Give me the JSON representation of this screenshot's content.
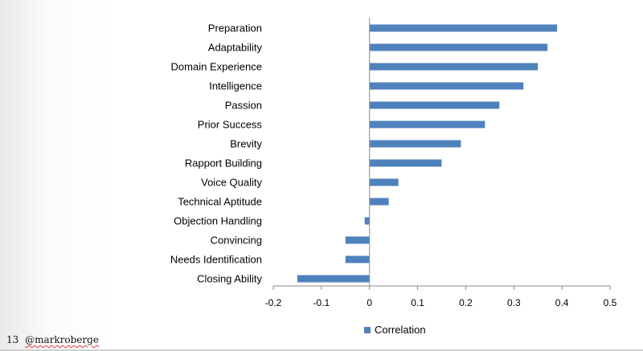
{
  "chart_data": {
    "type": "bar",
    "orientation": "horizontal",
    "categories": [
      "Preparation",
      "Adaptability",
      "Domain Experience",
      "Intelligence",
      "Passion",
      "Prior Success",
      "Brevity",
      "Rapport Building",
      "Voice Quality",
      "Technical Aptitude",
      "Objection Handling",
      "Convincing",
      "Needs Identification",
      "Closing Ability"
    ],
    "series": [
      {
        "name": "Correlation",
        "values": [
          0.39,
          0.37,
          0.35,
          0.32,
          0.27,
          0.24,
          0.19,
          0.15,
          0.06,
          0.04,
          -0.01,
          -0.05,
          -0.05,
          -0.15
        ]
      }
    ],
    "xlim": [
      -0.2,
      0.5
    ],
    "xticks": [
      "-0.2",
      "-0.1",
      "0",
      "0.1",
      "0.2",
      "0.3",
      "0.4",
      "0.5"
    ],
    "title": "",
    "xlabel": "",
    "ylabel": "",
    "legend_position": "bottom",
    "grid": false,
    "bar_color": "#4f81bd"
  },
  "footer": {
    "slide_number": "13",
    "handle": "@markroberge"
  }
}
